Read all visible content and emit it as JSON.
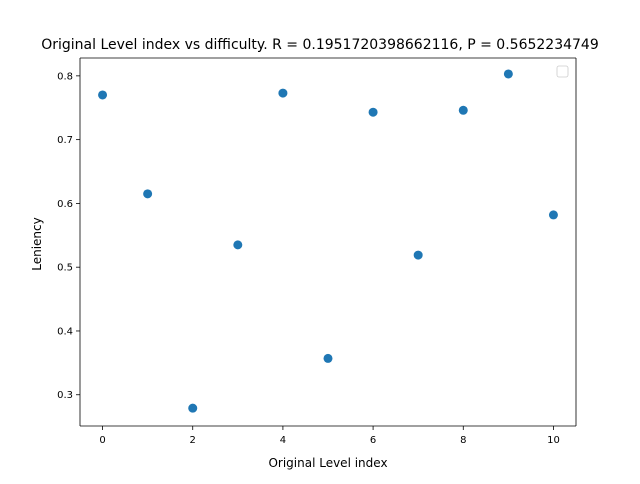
{
  "chart_data": {
    "type": "scatter",
    "title": "Original Level index vs difficulty. R = 0.1951720398662116, P = 0.5652234749",
    "xlabel": "Original Level index",
    "ylabel": "Leniency",
    "xlim": [
      -0.5,
      10.5
    ],
    "ylim": [
      0.251,
      0.828
    ],
    "xticks": [
      0,
      2,
      4,
      6,
      8,
      10
    ],
    "yticks": [
      0.3,
      0.4,
      0.5,
      0.6,
      0.7,
      0.8
    ],
    "xtick_labels": [
      "0",
      "2",
      "4",
      "6",
      "8",
      "10"
    ],
    "ytick_labels": [
      "0.3",
      "0.4",
      "0.5",
      "0.6",
      "0.7",
      "0.8"
    ],
    "grid": false,
    "legend": {
      "placement": "top-right",
      "entries": []
    },
    "series": [
      {
        "color": "#1f77b4",
        "points": [
          {
            "x": 0,
            "y": 0.77
          },
          {
            "x": 1,
            "y": 0.615
          },
          {
            "x": 2,
            "y": 0.279
          },
          {
            "x": 3,
            "y": 0.535
          },
          {
            "x": 4,
            "y": 0.773
          },
          {
            "x": 5,
            "y": 0.357
          },
          {
            "x": 6,
            "y": 0.743
          },
          {
            "x": 7,
            "y": 0.519
          },
          {
            "x": 8,
            "y": 0.746
          },
          {
            "x": 9,
            "y": 0.803
          },
          {
            "x": 10,
            "y": 0.582
          }
        ]
      }
    ]
  }
}
